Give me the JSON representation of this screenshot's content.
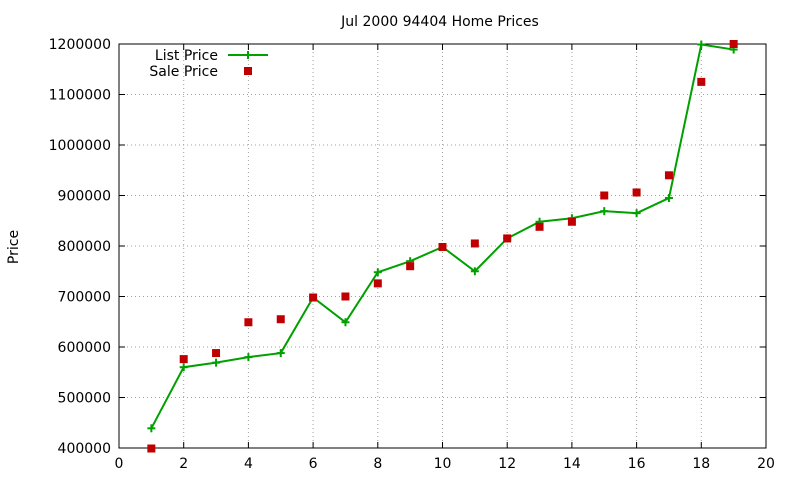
{
  "chart_data": {
    "type": "line",
    "title": "Jul 2000 94404 Home Prices",
    "xlabel": "",
    "ylabel": "Price",
    "xlim": [
      0,
      20
    ],
    "ylim": [
      400000,
      1200000
    ],
    "x_ticks": [
      0,
      2,
      4,
      6,
      8,
      10,
      12,
      14,
      16,
      18,
      20
    ],
    "y_ticks": [
      400000,
      500000,
      600000,
      700000,
      800000,
      900000,
      1000000,
      1100000,
      1200000
    ],
    "grid": true,
    "legend_position": "top-left",
    "series": [
      {
        "name": "List Price",
        "style": "line-with-plus-markers",
        "color": "#00a000",
        "x": [
          1,
          2,
          3,
          4,
          5,
          6,
          7,
          8,
          9,
          10,
          11,
          12,
          13,
          14,
          15,
          16,
          17,
          18,
          19
        ],
        "values": [
          439000,
          560000,
          569000,
          580000,
          588000,
          698000,
          649000,
          748000,
          770000,
          798000,
          750000,
          815000,
          848000,
          855000,
          869000,
          865000,
          895000,
          1199000,
          1189000
        ]
      },
      {
        "name": "Sale Price",
        "style": "square-markers",
        "color": "#c00000",
        "x": [
          1,
          2,
          3,
          4,
          5,
          6,
          7,
          8,
          9,
          10,
          11,
          12,
          13,
          14,
          15,
          16,
          17,
          18,
          19
        ],
        "values": [
          399000,
          576000,
          588000,
          649000,
          655000,
          698000,
          700000,
          726000,
          760000,
          798000,
          805000,
          815000,
          838000,
          848000,
          900000,
          906000,
          940000,
          1125000,
          1200000
        ]
      }
    ]
  }
}
